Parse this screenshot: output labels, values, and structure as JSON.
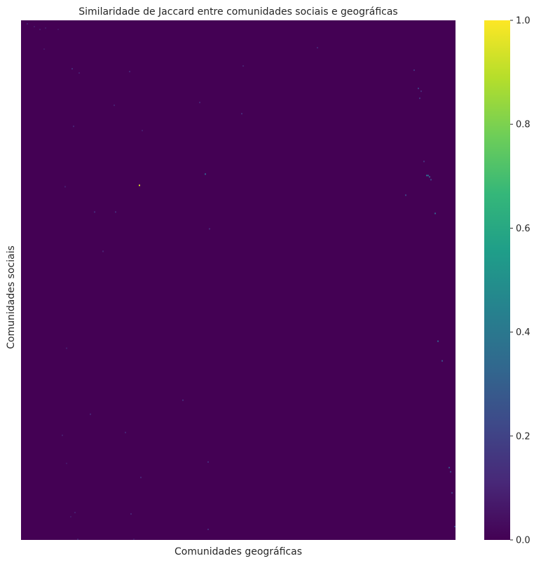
{
  "chart_data": {
    "type": "heatmap",
    "title": "Similaridade de Jaccard entre comunidades sociais e geográficas",
    "xlabel": "Comunidades geográficas",
    "ylabel": "Comunidades sociais",
    "x_tick_labels_visible": false,
    "y_tick_labels_visible": false,
    "colormap": "viridis",
    "colorbar": {
      "vmin": 0.0,
      "vmax": 1.0,
      "ticks": [
        "0.0",
        "0.2",
        "0.4",
        "0.6",
        "0.8",
        "1.0"
      ],
      "colors": [
        "#440154",
        "#482878",
        "#3e4989",
        "#31688e",
        "#26828e",
        "#1f9e89",
        "#35b779",
        "#6ece58",
        "#b5de2b",
        "#fde725"
      ]
    },
    "background_value": 0.0,
    "grid_shape": {
      "columns": 310,
      "rows": 370
    },
    "nonzero_cells": [
      {
        "col": 4,
        "row": 2,
        "v": 0.08
      },
      {
        "col": 9,
        "row": 4,
        "v": 0.06
      },
      {
        "col": 13,
        "row": 6,
        "v": 0.07
      },
      {
        "col": 17,
        "row": 5,
        "v": 0.06
      },
      {
        "col": 26,
        "row": 6,
        "v": 0.05
      },
      {
        "col": 16,
        "row": 20,
        "v": 0.06
      },
      {
        "col": 36,
        "row": 34,
        "v": 0.12
      },
      {
        "col": 41,
        "row": 37,
        "v": 0.08
      },
      {
        "col": 77,
        "row": 36,
        "v": 0.1
      },
      {
        "col": 158,
        "row": 32,
        "v": 0.09
      },
      {
        "col": 211,
        "row": 19,
        "v": 0.1
      },
      {
        "col": 280,
        "row": 35,
        "v": 0.14
      },
      {
        "col": 283,
        "row": 48,
        "v": 0.18
      },
      {
        "col": 285,
        "row": 50,
        "v": 0.12
      },
      {
        "col": 284,
        "row": 55,
        "v": 0.15
      },
      {
        "col": 66,
        "row": 60,
        "v": 0.09
      },
      {
        "col": 127,
        "row": 58,
        "v": 0.1
      },
      {
        "col": 157,
        "row": 66,
        "v": 0.12
      },
      {
        "col": 37,
        "row": 75,
        "v": 0.1
      },
      {
        "col": 86,
        "row": 78,
        "v": 0.08
      },
      {
        "col": 287,
        "row": 100,
        "v": 0.15
      },
      {
        "col": 289,
        "row": 110,
        "v": 0.35
      },
      {
        "col": 290,
        "row": 110,
        "v": 0.3
      },
      {
        "col": 291,
        "row": 111,
        "v": 0.28
      },
      {
        "col": 292,
        "row": 113,
        "v": 0.2
      },
      {
        "col": 131,
        "row": 109,
        "v": 0.3
      },
      {
        "col": 84,
        "row": 117,
        "v": 0.95
      },
      {
        "col": 31,
        "row": 118,
        "v": 0.08
      },
      {
        "col": 274,
        "row": 124,
        "v": 0.2
      },
      {
        "col": 52,
        "row": 136,
        "v": 0.12
      },
      {
        "col": 67,
        "row": 136,
        "v": 0.12
      },
      {
        "col": 295,
        "row": 137,
        "v": 0.3
      },
      {
        "col": 134,
        "row": 148,
        "v": 0.12
      },
      {
        "col": 58,
        "row": 164,
        "v": 0.1
      },
      {
        "col": 297,
        "row": 228,
        "v": 0.3
      },
      {
        "col": 32,
        "row": 233,
        "v": 0.08
      },
      {
        "col": 300,
        "row": 242,
        "v": 0.25
      },
      {
        "col": 115,
        "row": 270,
        "v": 0.12
      },
      {
        "col": 49,
        "row": 280,
        "v": 0.1
      },
      {
        "col": 74,
        "row": 293,
        "v": 0.1
      },
      {
        "col": 29,
        "row": 295,
        "v": 0.08
      },
      {
        "col": 133,
        "row": 314,
        "v": 0.12
      },
      {
        "col": 32,
        "row": 315,
        "v": 0.06
      },
      {
        "col": 305,
        "row": 318,
        "v": 0.25
      },
      {
        "col": 306,
        "row": 321,
        "v": 0.2
      },
      {
        "col": 85,
        "row": 325,
        "v": 0.1
      },
      {
        "col": 307,
        "row": 336,
        "v": 0.18
      },
      {
        "col": 38,
        "row": 350,
        "v": 0.08
      },
      {
        "col": 78,
        "row": 351,
        "v": 0.1
      },
      {
        "col": 35,
        "row": 353,
        "v": 0.06
      },
      {
        "col": 309,
        "row": 360,
        "v": 0.22
      },
      {
        "col": 133,
        "row": 362,
        "v": 0.12
      },
      {
        "col": 40,
        "row": 369,
        "v": 0.08
      },
      {
        "col": 80,
        "row": 369,
        "v": 0.06
      }
    ]
  }
}
